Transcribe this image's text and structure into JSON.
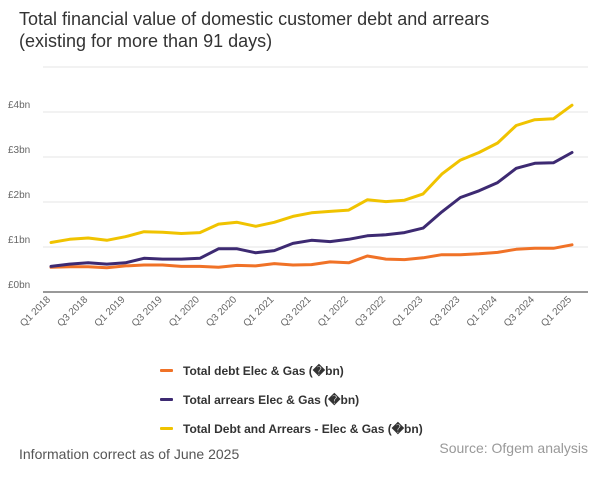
{
  "title_line1": "Total financial value of domestic customer debt and arrears",
  "title_line2": "(existing for more than 91 days)",
  "footer": "Information correct as of June 2025",
  "source": "Source: Ofgem analysis",
  "chart_data": {
    "type": "line",
    "title": "Total financial value of domestic customer debt and arrears (existing for more than 91 days)",
    "x": [
      "Q1 2018",
      "Q2 2018",
      "Q3 2018",
      "Q4 2018",
      "Q1 2019",
      "Q2 2019",
      "Q3 2019",
      "Q4 2019",
      "Q1 2020",
      "Q2 2020",
      "Q3 2020",
      "Q4 2020",
      "Q1 2021",
      "Q2 2021",
      "Q3 2021",
      "Q4 2021",
      "Q1 2022",
      "Q2 2022",
      "Q3 2022",
      "Q4 2022",
      "Q1 2023",
      "Q2 2023",
      "Q3 2023",
      "Q4 2023",
      "Q1 2024",
      "Q2 2024",
      "Q3 2024",
      "Q4 2024",
      "Q1 2025"
    ],
    "x_tick_labels": [
      "Q1 2018",
      "Q3 2018",
      "Q1 2019",
      "Q3 2019",
      "Q1 2020",
      "Q3 2020",
      "Q1 2021",
      "Q3 2021",
      "Q1 2022",
      "Q3 2022",
      "Q1 2023",
      "Q3 2023",
      "Q1 2024",
      "Q3 2024",
      "Q1 2025"
    ],
    "y_tick_labels": [
      "£0bn",
      "£1bn",
      "£2bn",
      "£3bn",
      "£4bn"
    ],
    "y_ticks": [
      0,
      1,
      2,
      3,
      4
    ],
    "ylim": [
      0,
      5
    ],
    "xlabel": "",
    "ylabel": "",
    "grid": true,
    "legend_position": "bottom",
    "series": [
      {
        "name": "Total debt Elec & Gas (�bn)",
        "color": "#f07227",
        "values": [
          0.55,
          0.56,
          0.56,
          0.54,
          0.58,
          0.6,
          0.6,
          0.57,
          0.57,
          0.55,
          0.59,
          0.58,
          0.63,
          0.6,
          0.61,
          0.67,
          0.65,
          0.8,
          0.73,
          0.72,
          0.76,
          0.83,
          0.83,
          0.85,
          0.88,
          0.95,
          0.97,
          0.97,
          1.05
        ]
      },
      {
        "name": "Total arrears Elec & Gas (�bn)",
        "color": "#3d2a72",
        "values": [
          0.57,
          0.62,
          0.65,
          0.62,
          0.65,
          0.75,
          0.73,
          0.73,
          0.75,
          0.96,
          0.96,
          0.87,
          0.92,
          1.08,
          1.15,
          1.12,
          1.17,
          1.25,
          1.27,
          1.32,
          1.42,
          1.78,
          2.1,
          2.25,
          2.43,
          2.75,
          2.86,
          2.87,
          3.1
        ]
      },
      {
        "name": "Total Debt and Arrears - Elec & Gas (�bn)",
        "color": "#f0c300",
        "values": [
          1.1,
          1.17,
          1.2,
          1.15,
          1.23,
          1.34,
          1.33,
          1.3,
          1.32,
          1.51,
          1.55,
          1.46,
          1.55,
          1.68,
          1.76,
          1.79,
          1.82,
          2.05,
          2.01,
          2.04,
          2.18,
          2.62,
          2.93,
          3.1,
          3.31,
          3.7,
          3.83,
          3.85,
          4.15
        ]
      }
    ]
  }
}
